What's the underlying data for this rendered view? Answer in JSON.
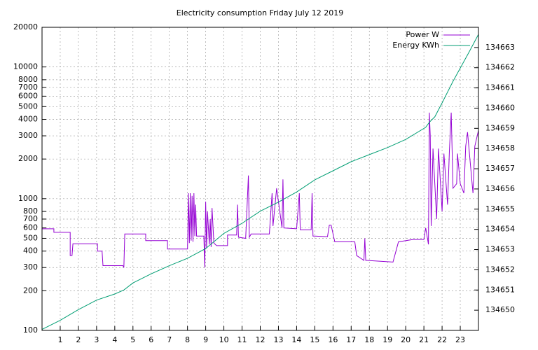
{
  "chart_data": {
    "type": "line",
    "title": "Electricity consumption Friday July 12 2019",
    "xlim": [
      0,
      24
    ],
    "xticks": [
      1,
      2,
      3,
      4,
      5,
      6,
      7,
      8,
      9,
      10,
      11,
      12,
      13,
      14,
      15,
      16,
      17,
      18,
      19,
      20,
      21,
      22,
      23
    ],
    "ylim": [
      100,
      20000
    ],
    "ylog": true,
    "yticks": [
      100,
      200,
      300,
      400,
      500,
      600,
      700,
      800,
      1000,
      2000,
      3000,
      4000,
      5000,
      6000,
      7000,
      8000,
      10000,
      20000
    ],
    "y2lim": [
      134649,
      134664
    ],
    "y2ticks": [
      134650,
      134651,
      134652,
      134653,
      134654,
      134655,
      134656,
      134657,
      134658,
      134659,
      134660,
      134661,
      134662,
      134663
    ],
    "grid": true,
    "legend": "top-right",
    "series": [
      {
        "name": "Power W",
        "color": "#9400d3",
        "x": [
          0,
          0.65,
          0.65,
          1.55,
          1.55,
          1.65,
          1.7,
          3.05,
          3.05,
          3.3,
          3.35,
          4.45,
          4.5,
          4.55,
          5.7,
          5.7,
          6.9,
          6.9,
          8.0,
          8.05,
          8.1,
          8.15,
          8.2,
          8.25,
          8.3,
          8.35,
          8.4,
          8.45,
          8.5,
          8.9,
          8.95,
          9.0,
          9.05,
          9.1,
          9.2,
          9.25,
          9.3,
          9.35,
          9.45,
          9.6,
          10.2,
          10.2,
          10.7,
          10.75,
          10.8,
          11.2,
          11.35,
          11.4,
          11.5,
          11.8,
          12.5,
          12.65,
          12.7,
          12.9,
          13.2,
          13.25,
          13.3,
          14.0,
          14.15,
          14.2,
          14.3,
          14.8,
          14.85,
          14.9,
          15.0,
          15.7,
          15.8,
          15.9,
          16.1,
          17.2,
          17.3,
          17.7,
          17.75,
          17.8,
          17.85,
          19.3,
          19.6,
          20.4,
          21.0,
          21.1,
          21.25,
          21.3,
          21.35,
          21.4,
          21.5,
          21.7,
          21.8,
          22.0,
          22.1,
          22.3,
          22.4,
          22.5,
          22.6,
          22.8,
          22.85,
          23.0,
          23.2,
          23.3,
          23.4,
          23.7,
          23.8,
          24.0
        ],
        "values": [
          590,
          590,
          555,
          555,
          370,
          370,
          455,
          455,
          400,
          400,
          310,
          310,
          300,
          540,
          540,
          480,
          480,
          415,
          415,
          1100,
          460,
          1100,
          480,
          1050,
          470,
          1100,
          520,
          900,
          520,
          520,
          300,
          950,
          420,
          800,
          450,
          700,
          430,
          850,
          460,
          440,
          440,
          530,
          530,
          900,
          510,
          500,
          1500,
          510,
          540,
          540,
          540,
          1100,
          620,
          1200,
          600,
          1400,
          600,
          590,
          1100,
          580,
          580,
          580,
          1100,
          520,
          520,
          515,
          630,
          630,
          470,
          470,
          370,
          340,
          500,
          340,
          340,
          330,
          470,
          490,
          490,
          600,
          450,
          4500,
          3000,
          620,
          2400,
          700,
          2400,
          800,
          2200,
          900,
          2300,
          4500,
          1200,
          1300,
          2200,
          1300,
          1100,
          2500,
          3200,
          1100,
          2500,
          3300
        ]
      },
      {
        "name": "Energy KWh",
        "color": "#009e73",
        "axis": "y2",
        "x": [
          0,
          1,
          2,
          3,
          4,
          4.5,
          5,
          6,
          7,
          8,
          9,
          10,
          11,
          12,
          13,
          14,
          15,
          16,
          17,
          18,
          19,
          20,
          21.1,
          21.3,
          21.6,
          22,
          22.6,
          23.5,
          24
        ],
        "values": [
          134649.05,
          134649.5,
          134650.03,
          134650.5,
          134650.8,
          134651.0,
          134651.35,
          134651.8,
          134652.2,
          134652.57,
          134653.05,
          134653.8,
          134654.3,
          134654.9,
          134655.35,
          134655.85,
          134656.45,
          134656.9,
          134657.35,
          134657.7,
          134658.05,
          134658.45,
          134659.05,
          134659.3,
          134659.57,
          134660.26,
          134661.33,
          134662.8,
          134663.65
        ]
      }
    ]
  }
}
